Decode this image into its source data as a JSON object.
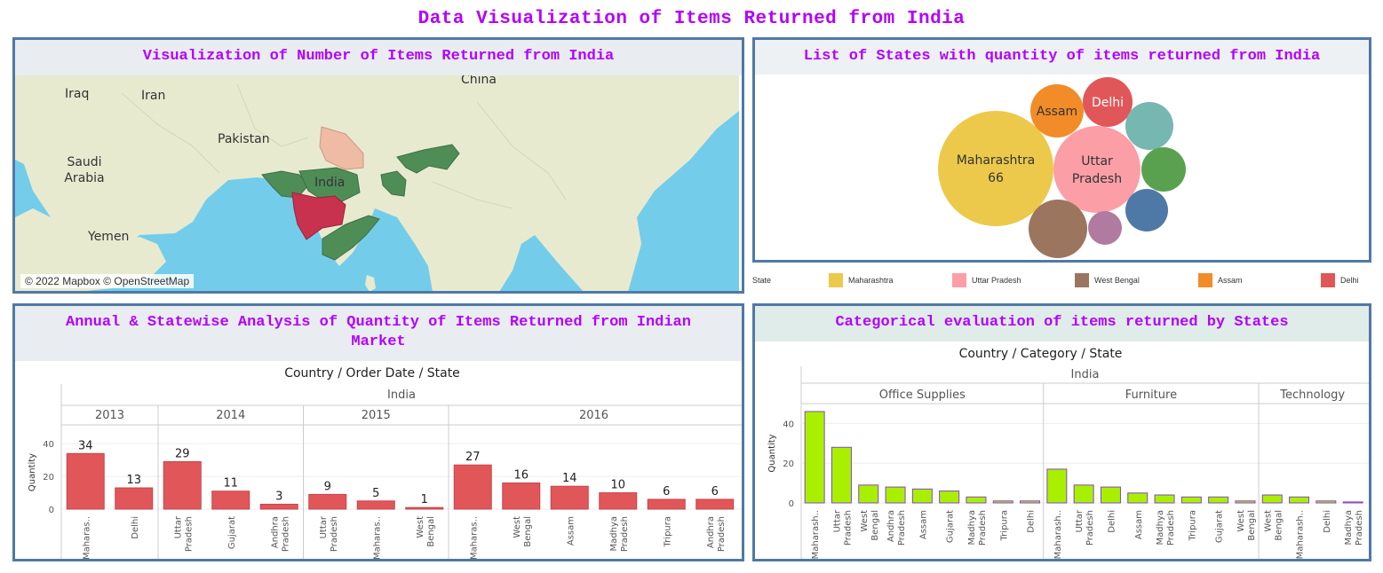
{
  "page": {
    "title": "Data Visualization of Items Returned from India"
  },
  "map": {
    "title": "Visualization of Number of Items Returned from India",
    "labels": {
      "iraq": "Iraq",
      "iran": "Iran",
      "china": "China",
      "pakistan": "Pakistan",
      "saudi": "Saudi\nArabia",
      "india": "India",
      "yemen": "Yemen"
    },
    "attribution": "© 2022 Mapbox © OpenStreetMap",
    "colors": {
      "land": "#e8ead0",
      "water": "#73cdea",
      "highlight_green": "#4f8d57",
      "highlight_red": "#c8324e",
      "highlight_peach": "#f0bba4"
    }
  },
  "bubbles": {
    "title": "List of States with quantity of items returned from India",
    "items": [
      {
        "state": "Maharashtra",
        "label": "Maharashtra",
        "value": "66",
        "color": "#ecc94b"
      },
      {
        "state": "Uttar Pradesh",
        "label": "Uttar\nPradesh",
        "value": "",
        "color": "#fc9ea6"
      },
      {
        "state": "Assam",
        "label": "Assam",
        "value": "",
        "color": "#f28c28"
      },
      {
        "state": "Delhi",
        "label": "Delhi",
        "value": "",
        "color": "#e15759"
      },
      {
        "state": "",
        "label": "",
        "value": "",
        "color": "#76b7b2"
      },
      {
        "state": "",
        "label": "",
        "value": "",
        "color": "#59a14f"
      },
      {
        "state": "",
        "label": "",
        "value": "",
        "color": "#4e79a7"
      },
      {
        "state": "",
        "label": "",
        "value": "",
        "color": "#b07aa1"
      },
      {
        "state": "West Bengal",
        "label": "",
        "value": "",
        "color": "#9c755f"
      }
    ],
    "legend_title": "State",
    "legend": [
      {
        "name": "Maharashtra",
        "color": "#ecc94b"
      },
      {
        "name": "Uttar Pradesh",
        "color": "#fc9ea6"
      },
      {
        "name": "West Bengal",
        "color": "#9c755f"
      },
      {
        "name": "Assam",
        "color": "#f28c28"
      },
      {
        "name": "Delhi",
        "color": "#e15759"
      }
    ]
  },
  "annual": {
    "title": "Annual & Statewise Analysis of Quantity of Items Returned from Indian Market",
    "header": "Country / Order Date / State"
  },
  "categorical": {
    "title": "Categorical evaluation of items returned by States",
    "header": "Country / Category / State"
  },
  "chart_data": [
    {
      "type": "bar",
      "title": "Country / Order Date / State",
      "ylabel": "Quantity",
      "ylim": [
        0,
        45
      ],
      "yticks": [
        0,
        20,
        40
      ],
      "country": "India",
      "bar_color": "#e15759",
      "groups": [
        {
          "name": "2013",
          "categories": [
            "Maharas..",
            "Delhi"
          ],
          "values": [
            34,
            13
          ]
        },
        {
          "name": "2014",
          "categories": [
            "Uttar\nPradesh",
            "Gujarat",
            "Andhra\nPradesh"
          ],
          "values": [
            29,
            11,
            3
          ]
        },
        {
          "name": "2015",
          "categories": [
            "Uttar\nPradesh",
            "Maharas..",
            "West\nBengal"
          ],
          "values": [
            9,
            5,
            1
          ]
        },
        {
          "name": "2016",
          "categories": [
            "Maharas..",
            "West\nBengal",
            "Assam",
            "Madhya\nPradesh",
            "Tripura",
            "Andhra\nPradesh"
          ],
          "values": [
            27,
            16,
            14,
            10,
            6,
            6
          ]
        }
      ]
    },
    {
      "type": "bar",
      "title": "Country / Category / State",
      "ylabel": "Quantity",
      "ylim": [
        0,
        50
      ],
      "yticks": [
        0,
        20,
        40
      ],
      "country": "India",
      "bar_color": "#a8f000",
      "groups": [
        {
          "name": "Office Supplies",
          "categories": [
            "Maharash..",
            "Uttar\nPradesh",
            "West\nBengal",
            "Andhra\nPradesh",
            "Assam",
            "Gujarat",
            "Madhya\nPradesh",
            "Tripura",
            "Delhi"
          ],
          "values": [
            46,
            28,
            9,
            8,
            7,
            6,
            3,
            1,
            1
          ]
        },
        {
          "name": "Furniture",
          "categories": [
            "Maharash..",
            "Uttar\nPradesh",
            "Delhi",
            "Assam",
            "Madhya\nPradesh",
            "Tripura",
            "Gujarat",
            "West\nBengal"
          ],
          "values": [
            17,
            9,
            8,
            5,
            4,
            3,
            3,
            1
          ]
        },
        {
          "name": "Technology",
          "categories": [
            "West\nBengal",
            "Maharash..",
            "Delhi",
            "Madhya\nPradesh"
          ],
          "values": [
            4,
            3,
            1,
            0.5
          ]
        }
      ]
    }
  ]
}
